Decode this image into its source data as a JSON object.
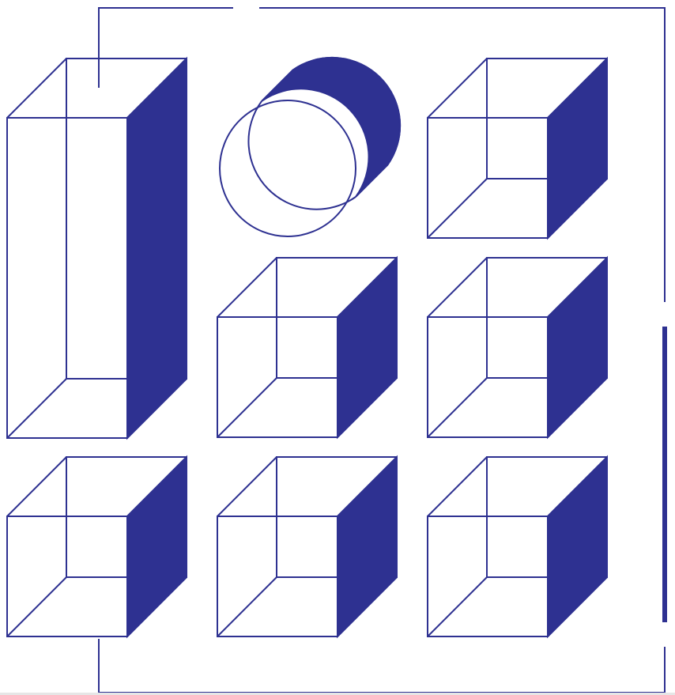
{
  "colors": {
    "stroke": "#2e3191",
    "fill": "#2e3191",
    "background": "#ffffff",
    "divider": "#e6e6e6"
  },
  "shapes": [
    {
      "name": "tall-prism",
      "kind": "prism",
      "shaded_face": "right-side"
    },
    {
      "name": "cylinder",
      "kind": "cylinder",
      "shaded_face": "side"
    },
    {
      "name": "cube-row1-col3",
      "kind": "cube",
      "shaded_face": "right-side"
    },
    {
      "name": "cube-row2-col2",
      "kind": "cube",
      "shaded_face": "right-side"
    },
    {
      "name": "cube-row2-col3",
      "kind": "cube",
      "shaded_face": "right-side"
    },
    {
      "name": "cube-row3-col1",
      "kind": "cube",
      "shaded_face": "right-side"
    },
    {
      "name": "cube-row3-col2",
      "kind": "cube",
      "shaded_face": "right-side"
    },
    {
      "name": "cube-row3-col3",
      "kind": "cube",
      "shaded_face": "right-side"
    }
  ]
}
